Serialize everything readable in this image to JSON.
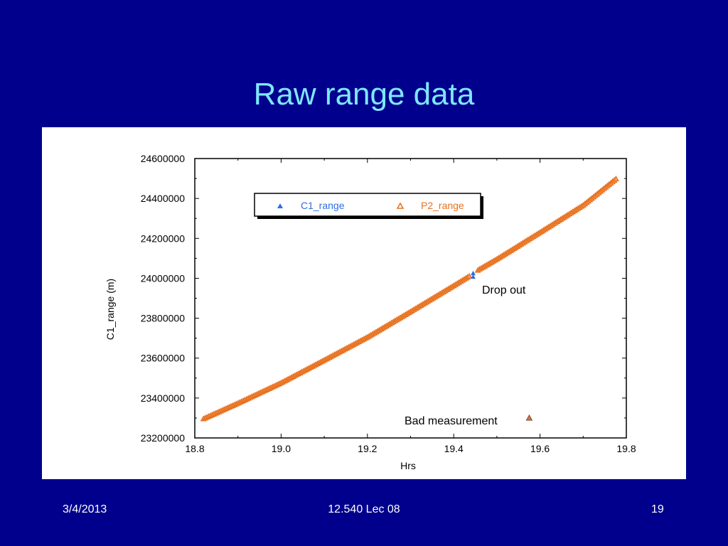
{
  "slide": {
    "title": "Raw range data",
    "footer_date": "3/4/2013",
    "footer_center": "12.540 Lec 08",
    "page_number": "19"
  },
  "colors": {
    "background": "#00008c",
    "title": "#7fe6ff",
    "c1_series": "#2f6fe0",
    "p2_series": "#e8701f",
    "bad_marker": "#c87850"
  },
  "chart_data": {
    "type": "scatter",
    "title": "",
    "xlabel": "Hrs",
    "ylabel": "C1_range (m)",
    "xlim": [
      18.8,
      19.8
    ],
    "ylim": [
      23200000,
      24600000
    ],
    "x_ticks": [
      "18.8",
      "19.0",
      "19.2",
      "19.4",
      "19.6",
      "19.8"
    ],
    "y_ticks": [
      "23200000",
      "23400000",
      "23600000",
      "23800000",
      "24000000",
      "24200000",
      "24400000",
      "24600000"
    ],
    "grid": false,
    "legend_position": "top-left",
    "legend": [
      {
        "name": "C1_range",
        "marker": "filled-triangle"
      },
      {
        "name": "P2_range",
        "marker": "open-triangle"
      }
    ],
    "series": [
      {
        "name": "P2_range",
        "x": [
          18.82,
          18.9,
          19.0,
          19.1,
          19.2,
          19.3,
          19.4,
          19.44,
          19.46,
          19.5,
          19.6,
          19.7,
          19.78
        ],
        "y": [
          23296000,
          23374000,
          23476000,
          23590000,
          23705000,
          23833000,
          23963000,
          24016000,
          24046000,
          24096000,
          24230000,
          24366000,
          24505000
        ]
      },
      {
        "name": "C1_range",
        "x": [
          19.445
        ],
        "y": [
          24018000
        ]
      },
      {
        "name": "Bad measurement",
        "x": [
          19.575
        ],
        "y": [
          23300000
        ]
      }
    ],
    "annotations": [
      {
        "text": "Drop out",
        "x": 19.465,
        "y": 23965000
      },
      {
        "text": "Bad measurement",
        "x": 19.3,
        "y": 23300000
      }
    ]
  }
}
